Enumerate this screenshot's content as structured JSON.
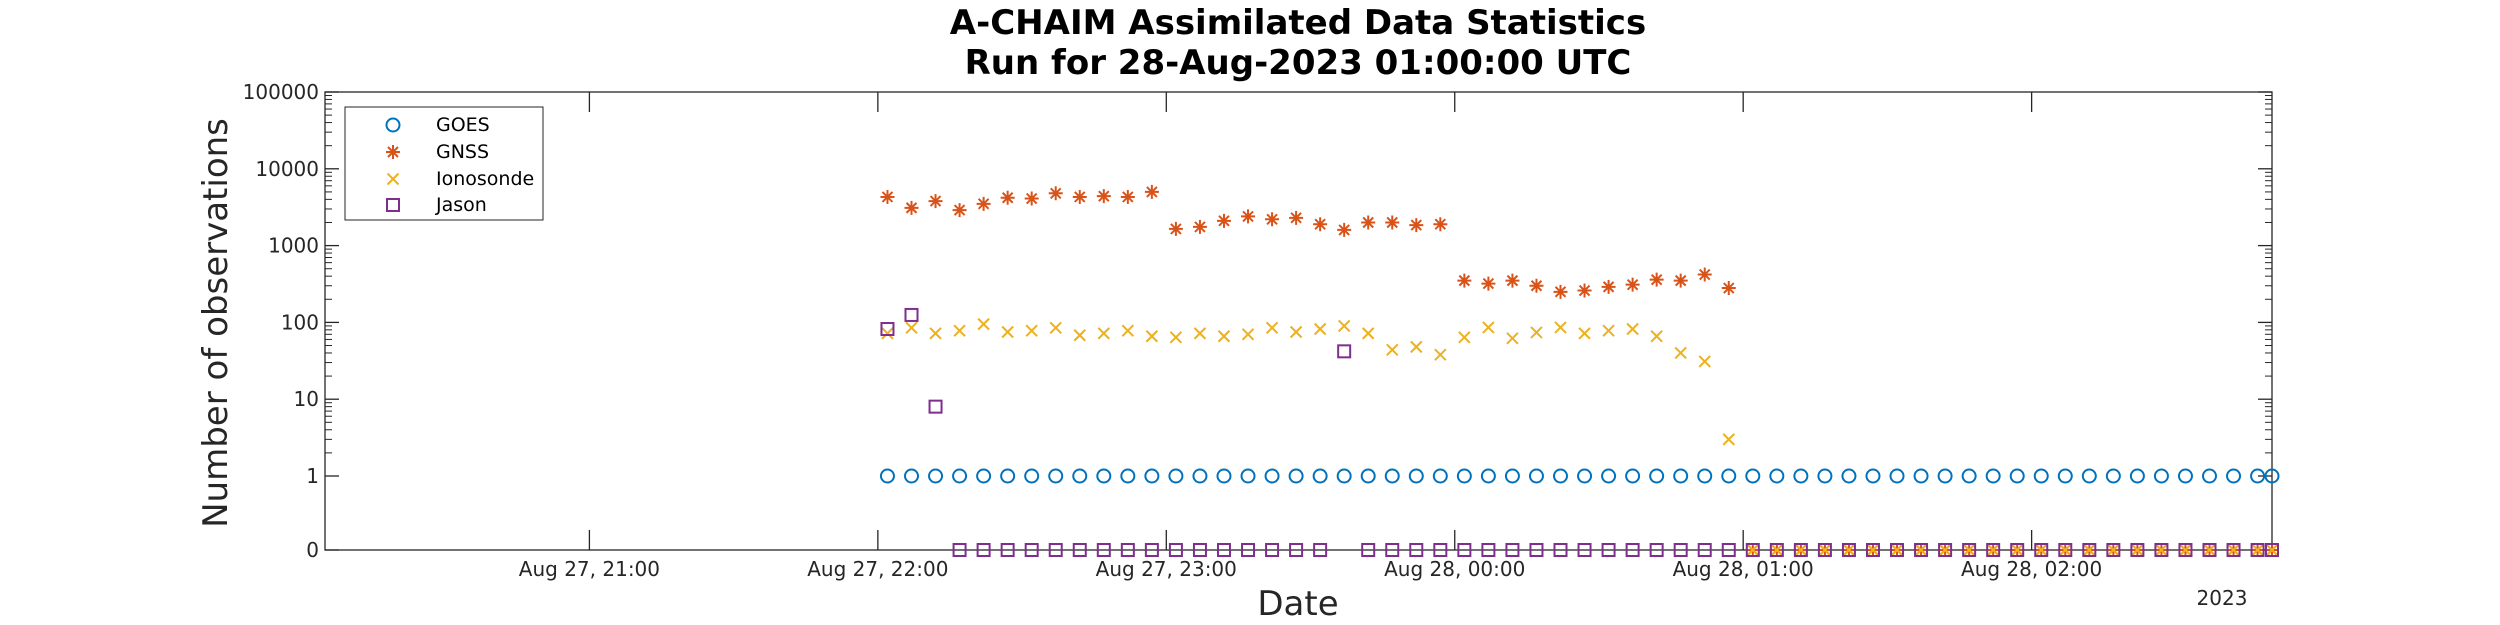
{
  "chart_data": {
    "type": "scatter",
    "title": "A-CHAIM Assimilated Data Statistics",
    "subtitle": "Run for 28-Aug-2023 01:00:00 UTC",
    "xlabel": "Date",
    "ylabel": "Number of observations",
    "x_axis_year_label": "2023",
    "yscale": "log",
    "ylim": [
      0,
      100000
    ],
    "xlim": [
      "2023-08-27 20:05",
      "2023-08-28 02:50"
    ],
    "x_ticks": [
      {
        "t": "2023-08-27 21:00",
        "label": "Aug 27, 21:00"
      },
      {
        "t": "2023-08-27 22:00",
        "label": "Aug 27, 22:00"
      },
      {
        "t": "2023-08-27 23:00",
        "label": "Aug 27, 23:00"
      },
      {
        "t": "2023-08-28 00:00",
        "label": "Aug 28, 00:00"
      },
      {
        "t": "2023-08-28 01:00",
        "label": "Aug 28, 01:00"
      },
      {
        "t": "2023-08-28 02:00",
        "label": "Aug 28, 02:00"
      }
    ],
    "y_ticks": [
      {
        "v": 0,
        "label": "0"
      },
      {
        "v": 1,
        "label": "1"
      },
      {
        "v": 10,
        "label": "10"
      },
      {
        "v": 100,
        "label": "100"
      },
      {
        "v": 1000,
        "label": "1000"
      },
      {
        "v": 10000,
        "label": "10000"
      },
      {
        "v": 100000,
        "label": "100000"
      }
    ],
    "grid": false,
    "legend_position": "top-left",
    "series": [
      {
        "name": "GOES",
        "marker": "circle",
        "color": "#0072BD",
        "points": [
          [
            "2023-08-27 22:02",
            1
          ],
          [
            "2023-08-27 22:07",
            1
          ],
          [
            "2023-08-27 22:12",
            1
          ],
          [
            "2023-08-27 22:17",
            1
          ],
          [
            "2023-08-27 22:22",
            1
          ],
          [
            "2023-08-27 22:27",
            1
          ],
          [
            "2023-08-27 22:32",
            1
          ],
          [
            "2023-08-27 22:37",
            1
          ],
          [
            "2023-08-27 22:42",
            1
          ],
          [
            "2023-08-27 22:47",
            1
          ],
          [
            "2023-08-27 22:52",
            1
          ],
          [
            "2023-08-27 22:57",
            1
          ],
          [
            "2023-08-27 23:02",
            1
          ],
          [
            "2023-08-27 23:07",
            1
          ],
          [
            "2023-08-27 23:12",
            1
          ],
          [
            "2023-08-27 23:17",
            1
          ],
          [
            "2023-08-27 23:22",
            1
          ],
          [
            "2023-08-27 23:27",
            1
          ],
          [
            "2023-08-27 23:32",
            1
          ],
          [
            "2023-08-27 23:37",
            1
          ],
          [
            "2023-08-27 23:42",
            1
          ],
          [
            "2023-08-27 23:47",
            1
          ],
          [
            "2023-08-27 23:52",
            1
          ],
          [
            "2023-08-27 23:57",
            1
          ],
          [
            "2023-08-28 00:02",
            1
          ],
          [
            "2023-08-28 00:07",
            1
          ],
          [
            "2023-08-28 00:12",
            1
          ],
          [
            "2023-08-28 00:17",
            1
          ],
          [
            "2023-08-28 00:22",
            1
          ],
          [
            "2023-08-28 00:27",
            1
          ],
          [
            "2023-08-28 00:32",
            1
          ],
          [
            "2023-08-28 00:37",
            1
          ],
          [
            "2023-08-28 00:42",
            1
          ],
          [
            "2023-08-28 00:47",
            1
          ],
          [
            "2023-08-28 00:52",
            1
          ],
          [
            "2023-08-28 00:57",
            1
          ],
          [
            "2023-08-28 01:02",
            1
          ],
          [
            "2023-08-28 01:07",
            1
          ],
          [
            "2023-08-28 01:12",
            1
          ],
          [
            "2023-08-28 01:17",
            1
          ],
          [
            "2023-08-28 01:22",
            1
          ],
          [
            "2023-08-28 01:27",
            1
          ],
          [
            "2023-08-28 01:32",
            1
          ],
          [
            "2023-08-28 01:37",
            1
          ],
          [
            "2023-08-28 01:42",
            1
          ],
          [
            "2023-08-28 01:47",
            1
          ],
          [
            "2023-08-28 01:52",
            1
          ],
          [
            "2023-08-28 01:57",
            1
          ],
          [
            "2023-08-28 02:02",
            1
          ],
          [
            "2023-08-28 02:07",
            1
          ],
          [
            "2023-08-28 02:12",
            1
          ],
          [
            "2023-08-28 02:17",
            1
          ],
          [
            "2023-08-28 02:22",
            1
          ],
          [
            "2023-08-28 02:27",
            1
          ],
          [
            "2023-08-28 02:32",
            1
          ],
          [
            "2023-08-28 02:37",
            1
          ],
          [
            "2023-08-28 02:42",
            1
          ],
          [
            "2023-08-28 02:47",
            1
          ],
          [
            "2023-08-28 02:50",
            1
          ]
        ]
      },
      {
        "name": "GNSS",
        "marker": "asterisk",
        "color": "#D95319",
        "points": [
          [
            "2023-08-27 22:02",
            4300
          ],
          [
            "2023-08-27 22:07",
            3100
          ],
          [
            "2023-08-27 22:12",
            3800
          ],
          [
            "2023-08-27 22:17",
            2900
          ],
          [
            "2023-08-27 22:22",
            3500
          ],
          [
            "2023-08-27 22:27",
            4200
          ],
          [
            "2023-08-27 22:32",
            4100
          ],
          [
            "2023-08-27 22:37",
            4800
          ],
          [
            "2023-08-27 22:42",
            4300
          ],
          [
            "2023-08-27 22:47",
            4400
          ],
          [
            "2023-08-27 22:52",
            4300
          ],
          [
            "2023-08-27 22:57",
            5000
          ],
          [
            "2023-08-27 23:02",
            1650
          ],
          [
            "2023-08-27 23:07",
            1750
          ],
          [
            "2023-08-27 23:12",
            2100
          ],
          [
            "2023-08-27 23:17",
            2400
          ],
          [
            "2023-08-27 23:22",
            2200
          ],
          [
            "2023-08-27 23:27",
            2300
          ],
          [
            "2023-08-27 23:32",
            1900
          ],
          [
            "2023-08-27 23:37",
            1600
          ],
          [
            "2023-08-27 23:42",
            2000
          ],
          [
            "2023-08-27 23:47",
            2000
          ],
          [
            "2023-08-27 23:52",
            1850
          ],
          [
            "2023-08-27 23:57",
            1900
          ],
          [
            "2023-08-28 00:02",
            350
          ],
          [
            "2023-08-28 00:07",
            320
          ],
          [
            "2023-08-28 00:12",
            350
          ],
          [
            "2023-08-28 00:17",
            300
          ],
          [
            "2023-08-28 00:22",
            250
          ],
          [
            "2023-08-28 00:27",
            260
          ],
          [
            "2023-08-28 00:32",
            290
          ],
          [
            "2023-08-28 00:37",
            310
          ],
          [
            "2023-08-28 00:42",
            360
          ],
          [
            "2023-08-28 00:47",
            350
          ],
          [
            "2023-08-28 00:52",
            420
          ],
          [
            "2023-08-28 00:57",
            280
          ],
          [
            "2023-08-28 01:02",
            0
          ],
          [
            "2023-08-28 01:07",
            0
          ],
          [
            "2023-08-28 01:12",
            0
          ],
          [
            "2023-08-28 01:17",
            0
          ],
          [
            "2023-08-28 01:22",
            0
          ],
          [
            "2023-08-28 01:27",
            0
          ],
          [
            "2023-08-28 01:32",
            0
          ],
          [
            "2023-08-28 01:37",
            0
          ],
          [
            "2023-08-28 01:42",
            0
          ],
          [
            "2023-08-28 01:47",
            0
          ],
          [
            "2023-08-28 01:52",
            0
          ],
          [
            "2023-08-28 01:57",
            0
          ],
          [
            "2023-08-28 02:02",
            0
          ],
          [
            "2023-08-28 02:07",
            0
          ],
          [
            "2023-08-28 02:12",
            0
          ],
          [
            "2023-08-28 02:17",
            0
          ],
          [
            "2023-08-28 02:22",
            0
          ],
          [
            "2023-08-28 02:27",
            0
          ],
          [
            "2023-08-28 02:32",
            0
          ],
          [
            "2023-08-28 02:37",
            0
          ],
          [
            "2023-08-28 02:42",
            0
          ],
          [
            "2023-08-28 02:47",
            0
          ],
          [
            "2023-08-28 02:50",
            0
          ]
        ]
      },
      {
        "name": "Ionosonde",
        "marker": "x",
        "color": "#EDB120",
        "points": [
          [
            "2023-08-27 22:02",
            72
          ],
          [
            "2023-08-27 22:07",
            85
          ],
          [
            "2023-08-27 22:12",
            72
          ],
          [
            "2023-08-27 22:17",
            78
          ],
          [
            "2023-08-27 22:22",
            95
          ],
          [
            "2023-08-27 22:27",
            75
          ],
          [
            "2023-08-27 22:32",
            78
          ],
          [
            "2023-08-27 22:37",
            85
          ],
          [
            "2023-08-27 22:42",
            68
          ],
          [
            "2023-08-27 22:47",
            72
          ],
          [
            "2023-08-27 22:52",
            78
          ],
          [
            "2023-08-27 22:57",
            66
          ],
          [
            "2023-08-27 23:02",
            64
          ],
          [
            "2023-08-27 23:07",
            72
          ],
          [
            "2023-08-27 23:12",
            66
          ],
          [
            "2023-08-27 23:17",
            70
          ],
          [
            "2023-08-27 23:22",
            85
          ],
          [
            "2023-08-27 23:27",
            75
          ],
          [
            "2023-08-27 23:32",
            82
          ],
          [
            "2023-08-27 23:37",
            90
          ],
          [
            "2023-08-27 23:42",
            72
          ],
          [
            "2023-08-27 23:47",
            44
          ],
          [
            "2023-08-27 23:52",
            48
          ],
          [
            "2023-08-27 23:57",
            38
          ],
          [
            "2023-08-28 00:02",
            64
          ],
          [
            "2023-08-28 00:07",
            86
          ],
          [
            "2023-08-28 00:12",
            62
          ],
          [
            "2023-08-28 00:17",
            74
          ],
          [
            "2023-08-28 00:22",
            86
          ],
          [
            "2023-08-28 00:27",
            72
          ],
          [
            "2023-08-28 00:32",
            78
          ],
          [
            "2023-08-28 00:37",
            82
          ],
          [
            "2023-08-28 00:42",
            66
          ],
          [
            "2023-08-28 00:47",
            40
          ],
          [
            "2023-08-28 00:52",
            31
          ],
          [
            "2023-08-28 00:57",
            3
          ],
          [
            "2023-08-28 01:02",
            0
          ],
          [
            "2023-08-28 01:07",
            0
          ],
          [
            "2023-08-28 01:12",
            0
          ],
          [
            "2023-08-28 01:17",
            0
          ],
          [
            "2023-08-28 01:22",
            0
          ],
          [
            "2023-08-28 01:27",
            0
          ],
          [
            "2023-08-28 01:32",
            0
          ],
          [
            "2023-08-28 01:37",
            0
          ],
          [
            "2023-08-28 01:42",
            0
          ],
          [
            "2023-08-28 01:47",
            0
          ],
          [
            "2023-08-28 01:52",
            0
          ],
          [
            "2023-08-28 01:57",
            0
          ],
          [
            "2023-08-28 02:02",
            0
          ],
          [
            "2023-08-28 02:07",
            0
          ],
          [
            "2023-08-28 02:12",
            0
          ],
          [
            "2023-08-28 02:17",
            0
          ],
          [
            "2023-08-28 02:22",
            0
          ],
          [
            "2023-08-28 02:27",
            0
          ],
          [
            "2023-08-28 02:32",
            0
          ],
          [
            "2023-08-28 02:37",
            0
          ],
          [
            "2023-08-28 02:42",
            0
          ],
          [
            "2023-08-28 02:47",
            0
          ],
          [
            "2023-08-28 02:50",
            0
          ]
        ]
      },
      {
        "name": "Jason",
        "marker": "square",
        "color": "#7E2F8E",
        "points": [
          [
            "2023-08-27 22:02",
            82
          ],
          [
            "2023-08-27 22:07",
            125
          ],
          [
            "2023-08-27 22:12",
            8
          ],
          [
            "2023-08-27 22:17",
            0
          ],
          [
            "2023-08-27 22:22",
            0
          ],
          [
            "2023-08-27 22:27",
            0
          ],
          [
            "2023-08-27 22:32",
            0
          ],
          [
            "2023-08-27 22:37",
            0
          ],
          [
            "2023-08-27 22:42",
            0
          ],
          [
            "2023-08-27 22:47",
            0
          ],
          [
            "2023-08-27 22:52",
            0
          ],
          [
            "2023-08-27 22:57",
            0
          ],
          [
            "2023-08-27 23:02",
            0
          ],
          [
            "2023-08-27 23:07",
            0
          ],
          [
            "2023-08-27 23:12",
            0
          ],
          [
            "2023-08-27 23:17",
            0
          ],
          [
            "2023-08-27 23:22",
            0
          ],
          [
            "2023-08-27 23:27",
            0
          ],
          [
            "2023-08-27 23:32",
            0
          ],
          [
            "2023-08-27 23:37",
            42
          ],
          [
            "2023-08-27 23:42",
            0
          ],
          [
            "2023-08-27 23:47",
            0
          ],
          [
            "2023-08-27 23:52",
            0
          ],
          [
            "2023-08-27 23:57",
            0
          ],
          [
            "2023-08-28 00:02",
            0
          ],
          [
            "2023-08-28 00:07",
            0
          ],
          [
            "2023-08-28 00:12",
            0
          ],
          [
            "2023-08-28 00:17",
            0
          ],
          [
            "2023-08-28 00:22",
            0
          ],
          [
            "2023-08-28 00:27",
            0
          ],
          [
            "2023-08-28 00:32",
            0
          ],
          [
            "2023-08-28 00:37",
            0
          ],
          [
            "2023-08-28 00:42",
            0
          ],
          [
            "2023-08-28 00:47",
            0
          ],
          [
            "2023-08-28 00:52",
            0
          ],
          [
            "2023-08-28 00:57",
            0
          ],
          [
            "2023-08-28 01:02",
            0
          ],
          [
            "2023-08-28 01:07",
            0
          ],
          [
            "2023-08-28 01:12",
            0
          ],
          [
            "2023-08-28 01:17",
            0
          ],
          [
            "2023-08-28 01:22",
            0
          ],
          [
            "2023-08-28 01:27",
            0
          ],
          [
            "2023-08-28 01:32",
            0
          ],
          [
            "2023-08-28 01:37",
            0
          ],
          [
            "2023-08-28 01:42",
            0
          ],
          [
            "2023-08-28 01:47",
            0
          ],
          [
            "2023-08-28 01:52",
            0
          ],
          [
            "2023-08-28 01:57",
            0
          ],
          [
            "2023-08-28 02:02",
            0
          ],
          [
            "2023-08-28 02:07",
            0
          ],
          [
            "2023-08-28 02:12",
            0
          ],
          [
            "2023-08-28 02:17",
            0
          ],
          [
            "2023-08-28 02:22",
            0
          ],
          [
            "2023-08-28 02:27",
            0
          ],
          [
            "2023-08-28 02:32",
            0
          ],
          [
            "2023-08-28 02:37",
            0
          ],
          [
            "2023-08-28 02:42",
            0
          ],
          [
            "2023-08-28 02:47",
            0
          ],
          [
            "2023-08-28 02:50",
            0
          ]
        ]
      }
    ]
  }
}
